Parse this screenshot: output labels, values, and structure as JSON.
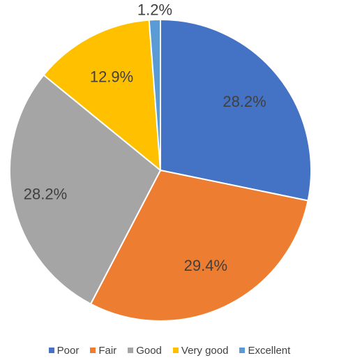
{
  "chart_data": {
    "type": "pie",
    "title": "",
    "categories": [
      "Poor",
      "Fair",
      "Good",
      "Very good",
      "Excellent"
    ],
    "values": [
      28.2,
      29.4,
      28.2,
      12.9,
      1.2
    ],
    "labels": [
      "28.2%",
      "29.4%",
      "28.2%",
      "12.9%",
      "1.2%"
    ],
    "colors": [
      "#4472C4",
      "#ED7D31",
      "#A5A5A5",
      "#FFC000",
      "#5B9BD5"
    ],
    "legend_position": "bottom",
    "start_angle_deg": 0,
    "direction": "clockwise"
  }
}
